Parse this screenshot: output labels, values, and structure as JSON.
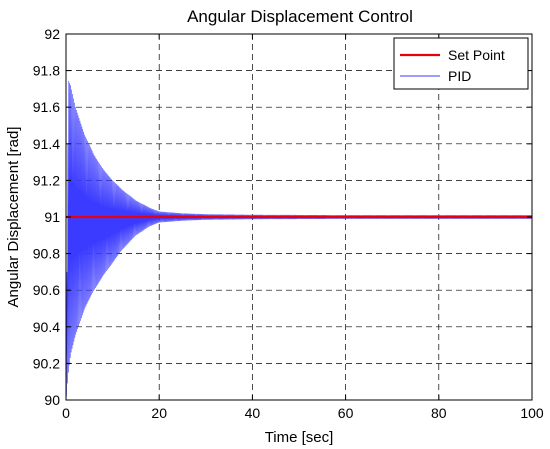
{
  "chart_data": {
    "type": "line",
    "title": "Angular Displacement Control",
    "xlabel": "Time [sec]",
    "ylabel": "Angular Displacement [rad]",
    "xlim": [
      0,
      100
    ],
    "ylim": [
      90,
      92
    ],
    "xticks": [
      0,
      20,
      40,
      60,
      80,
      100
    ],
    "yticks": [
      90,
      90.2,
      90.4,
      90.6,
      90.8,
      91,
      91.2,
      91.4,
      91.6,
      91.8,
      92
    ],
    "ytick_labels": [
      "90",
      "90.2",
      "90.4",
      "90.6",
      "90.8",
      "91",
      "91.2",
      "91.4",
      "91.6",
      "91.8",
      "92"
    ],
    "grid": true,
    "legend_position": "top-right",
    "series": [
      {
        "name": "Set Point",
        "color": "#e8000b",
        "x": [
          0,
          100
        ],
        "y": [
          91,
          91
        ]
      },
      {
        "name": "PID",
        "color": "#3b3bff",
        "description_of_shape": "decaying oscillation around 91",
        "x": [
          0,
          0.5,
          1,
          2,
          4,
          6,
          8,
          10,
          12,
          15,
          18,
          20,
          25,
          30,
          40,
          60,
          80,
          100
        ],
        "y_envelope_upper": [
          90.0,
          91.75,
          91.72,
          91.6,
          91.45,
          91.34,
          91.26,
          91.2,
          91.15,
          91.09,
          91.05,
          91.03,
          91.02,
          91.015,
          91.012,
          91.01,
          91.01,
          91.01
        ],
        "y_envelope_lower": [
          90.0,
          90.15,
          90.25,
          90.35,
          90.5,
          90.6,
          90.68,
          90.75,
          90.82,
          90.9,
          90.95,
          90.97,
          90.98,
          90.985,
          90.988,
          90.99,
          90.99,
          90.99
        ]
      }
    ]
  }
}
